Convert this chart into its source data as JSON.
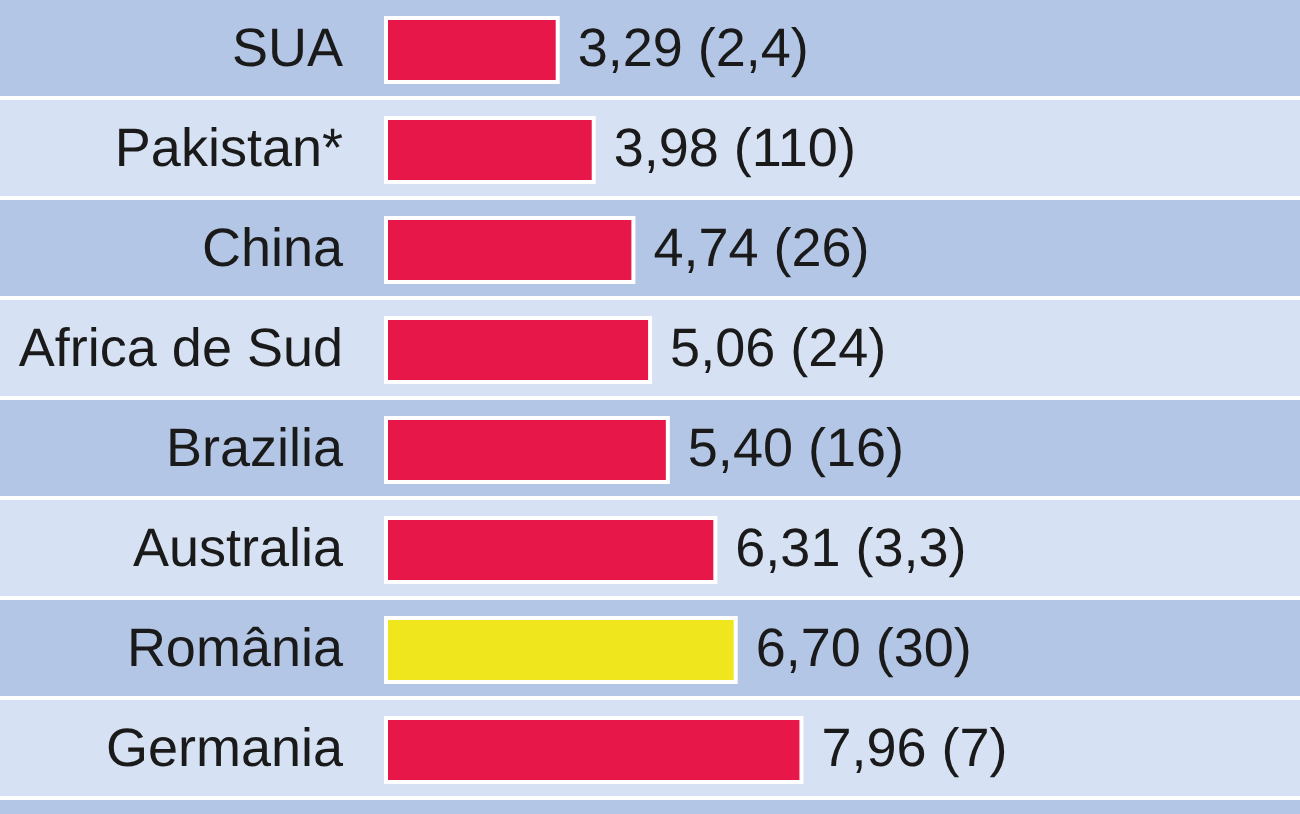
{
  "chart_data": {
    "type": "bar",
    "orientation": "horizontal",
    "categories": [
      "SUA",
      "Pakistan*",
      "China",
      "Africa de Sud",
      "Brazilia",
      "Australia",
      "România",
      "Germania"
    ],
    "values": [
      3.29,
      3.98,
      4.74,
      5.06,
      5.4,
      6.31,
      6.7,
      7.96
    ],
    "colors": [
      "#e8174a",
      "#e8174a",
      "#e8174a",
      "#e8174a",
      "#e8174a",
      "#e8174a",
      "#f0e61e",
      "#e8174a"
    ],
    "value_labels": [
      "3,29 (2,4)",
      "3,98 (110)",
      "4,74 (26)",
      "5,06 (24)",
      "5,40 (16)",
      "6,31 (3,3)",
      "6,70 (30)",
      "7,96 (7)"
    ]
  }
}
